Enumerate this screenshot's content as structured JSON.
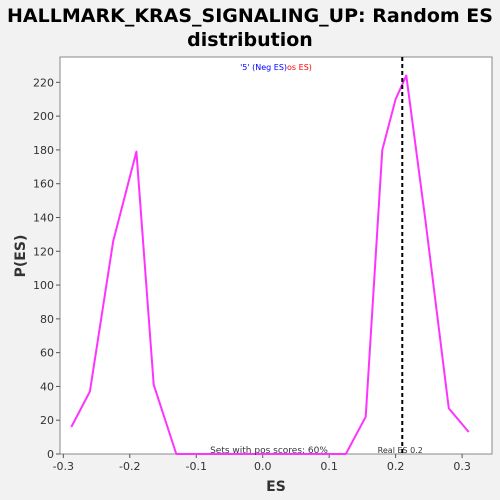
{
  "chart_data": {
    "type": "line",
    "title_line1": "HALLMARK_KRAS_SIGNALING_UP: Random ES",
    "title_line2": "distribution",
    "xlabel": "ES",
    "ylabel": "P(ES)",
    "xlim": [
      -0.305,
      0.345
    ],
    "ylim": [
      0,
      235
    ],
    "xticks": [
      -0.3,
      -0.2,
      -0.1,
      0.0,
      0.1,
      0.2,
      0.3
    ],
    "xtick_labels": [
      "-0.3",
      "-0.2",
      "-0.1",
      "0.0",
      "0.1",
      "0.2",
      "0.3"
    ],
    "yticks": [
      0,
      20,
      40,
      60,
      80,
      100,
      120,
      140,
      160,
      180,
      200,
      220
    ],
    "ytick_labels": [
      "0",
      "20",
      "40",
      "60",
      "80",
      "100",
      "120",
      "140",
      "160",
      "180",
      "200",
      "220"
    ],
    "grid": false,
    "legend": {
      "part1": "'5' (Neg ES)",
      "part2": "os ES)",
      "part1_color": "#0000ff",
      "part2_color": "#ff0000"
    },
    "series": [
      {
        "color": "#ff33ff",
        "points": [
          [
            -0.288,
            16
          ],
          [
            -0.26,
            37
          ],
          [
            -0.225,
            126
          ],
          [
            -0.19,
            179
          ],
          [
            -0.164,
            41
          ],
          [
            -0.13,
            0
          ],
          [
            -0.1,
            0
          ],
          [
            0.0,
            0
          ],
          [
            0.1,
            0
          ],
          [
            0.125,
            0
          ],
          [
            0.155,
            22
          ],
          [
            0.18,
            180
          ],
          [
            0.2,
            210
          ],
          [
            0.216,
            224
          ],
          [
            0.245,
            138
          ],
          [
            0.28,
            27
          ],
          [
            0.31,
            13
          ]
        ]
      }
    ],
    "real_es": {
      "value": 0.21,
      "label": "Real ES 0.2",
      "color": "#000000"
    },
    "annotation": "Sets with pos scores: 60%"
  }
}
